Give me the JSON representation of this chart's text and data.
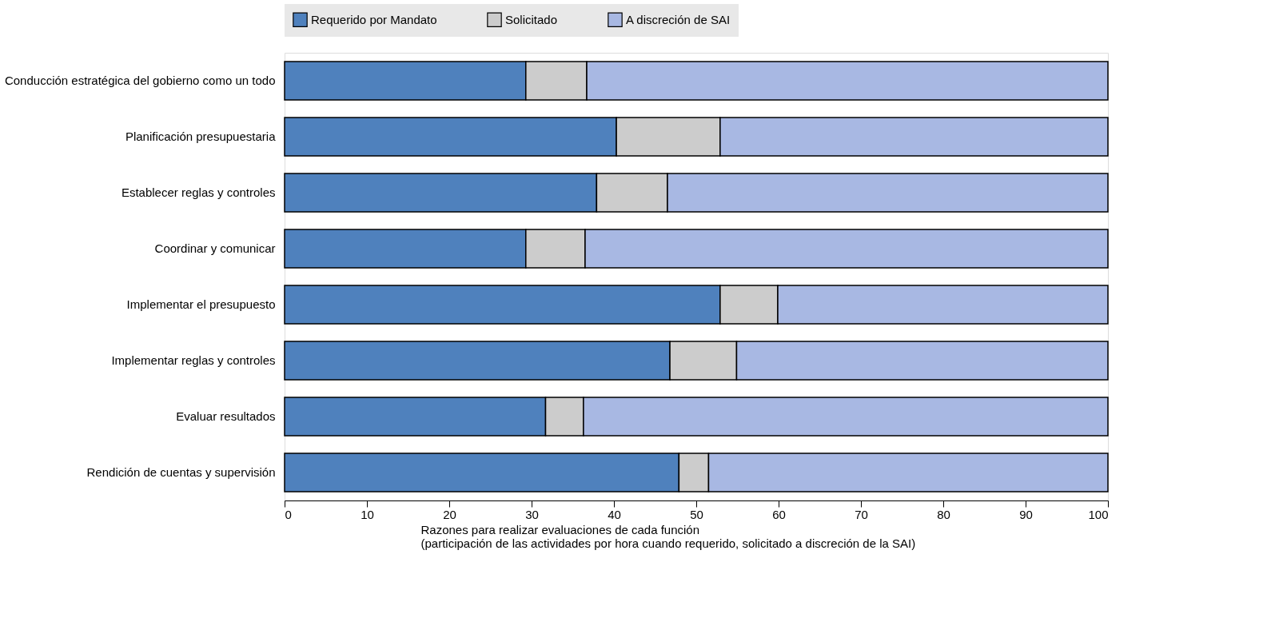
{
  "chart_data": {
    "type": "bar",
    "orientation": "horizontal",
    "stacked": true,
    "xlabel": "Razones para realizar evaluaciones de cada función\n(participación de las actividades por hora cuando requerido, solicitado a discreción de la SAI)",
    "categories": [
      "Conducción estratégica del gobierno como un todo",
      "Planificación presupuestaria",
      "Establecer reglas y controles",
      "Coordinar y comunicar",
      "Implementar el presupuesto",
      "Implementar reglas y controles",
      "Evaluar  resultados",
      "Rendición de cuentas y supervisión"
    ],
    "series": [
      {
        "name": "Requerido por Mandato",
        "color": "#4f81bd",
        "values": [
          29.3,
          40.3,
          37.9,
          29.3,
          52.9,
          46.8,
          31.7,
          47.9
        ]
      },
      {
        "name": "Solicitado",
        "color": "#cccccc",
        "values": [
          7.4,
          12.6,
          8.6,
          7.2,
          7.0,
          8.1,
          4.6,
          3.6
        ]
      },
      {
        "name": "A discreción de SAI",
        "color": "#a8b8e3",
        "values": [
          63.3,
          47.1,
          53.5,
          63.5,
          40.1,
          45.1,
          63.7,
          48.5
        ]
      }
    ],
    "xlim": [
      0,
      100
    ],
    "xticks": [
      0,
      10,
      20,
      30,
      40,
      50,
      60,
      70,
      80,
      90,
      100
    ],
    "grid": false,
    "legend": "top"
  }
}
